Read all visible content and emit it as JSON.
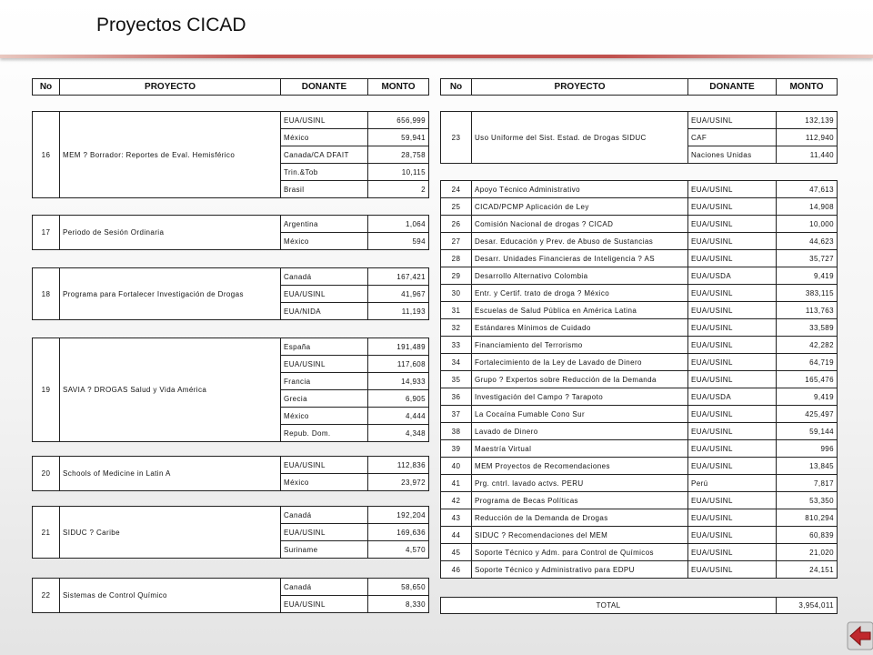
{
  "title": "Proyectos CICAD",
  "header": [
    "No",
    "PROYECTO",
    "DONANTE",
    "MONTO"
  ],
  "left": [
    {
      "no": "16",
      "project": "MEM ? Borrador: Reportes de Eval. Hemisférico",
      "donors": [
        {
          "name": "EUA/USINL",
          "amount": "656,999"
        },
        {
          "name": "México",
          "amount": "59,941"
        },
        {
          "name": "Canada/CA DFAIT",
          "amount": "28,758"
        },
        {
          "name": "Trin.&Tob",
          "amount": "10,115"
        },
        {
          "name": "Brasil",
          "amount": "2"
        }
      ]
    },
    {
      "no": "17",
      "project": "Periodo de Sesión Ordinaria",
      "donors": [
        {
          "name": "Argentina",
          "amount": "1,064"
        },
        {
          "name": "México",
          "amount": "594"
        }
      ]
    },
    {
      "no": "18",
      "project": "Programa para Fortalecer Investigación de Drogas",
      "donors": [
        {
          "name": "Canadá",
          "amount": "167,421"
        },
        {
          "name": "EUA/USINL",
          "amount": "41,967"
        },
        {
          "name": "EUA/NIDA",
          "amount": "11,193"
        }
      ]
    },
    {
      "no": "19",
      "project": "SAVIA ? DROGAS Salud y Vida América",
      "donors": [
        {
          "name": "España",
          "amount": "191,489"
        },
        {
          "name": "EUA/USINL",
          "amount": "117,608"
        },
        {
          "name": "Francia",
          "amount": "14,933"
        },
        {
          "name": "Grecia",
          "amount": "6,905"
        },
        {
          "name": "México",
          "amount": "4,444"
        },
        {
          "name": "Repub. Dom.",
          "amount": "4,348"
        }
      ]
    },
    {
      "no": "20",
      "project": "Schools of Medicine in Latin A",
      "donors": [
        {
          "name": "EUA/USINL",
          "amount": "112,836"
        },
        {
          "name": "México",
          "amount": "23,972"
        }
      ]
    },
    {
      "no": "21",
      "project": "SIDUC ? Caribe",
      "donors": [
        {
          "name": "Canadá",
          "amount": "192,204"
        },
        {
          "name": "EUA/USINL",
          "amount": "169,636"
        },
        {
          "name": "Suriname",
          "amount": "4,570"
        }
      ]
    },
    {
      "no": "22",
      "project": "Sistemas de Control Químico",
      "donors": [
        {
          "name": "Canadá",
          "amount": "58,650"
        },
        {
          "name": "EUA/USINL",
          "amount": "8,330"
        }
      ]
    }
  ],
  "right": [
    {
      "no": "23",
      "project": "Uso Uniforme del Sist. Estad. de Drogas SIDUC",
      "donors": [
        {
          "name": "EUA/USINL",
          "amount": "132,139"
        },
        {
          "name": "CAF",
          "amount": "112,940"
        },
        {
          "name": "Naciones Unidas",
          "amount": "11,440"
        }
      ]
    },
    {
      "no": "24",
      "project": "Apoyo Técnico Administrativo",
      "donors": [
        {
          "name": "EUA/USINL",
          "amount": "47,613"
        }
      ]
    },
    {
      "no": "25",
      "project": "CICAD/PCMP Aplicación de Ley",
      "donors": [
        {
          "name": "EUA/USINL",
          "amount": "14,908"
        }
      ]
    },
    {
      "no": "26",
      "project": "Comisión Nacional de drogas ? CICAD",
      "donors": [
        {
          "name": "EUA/USINL",
          "amount": "10,000"
        }
      ]
    },
    {
      "no": "27",
      "project": "Desar. Educación y Prev. de Abuso de Sustancias",
      "donors": [
        {
          "name": "EUA/USINL",
          "amount": "44,623"
        }
      ]
    },
    {
      "no": "28",
      "project": "Desarr. Unidades Financieras de Inteligencia ? AS",
      "donors": [
        {
          "name": "EUA/USINL",
          "amount": "35,727"
        }
      ]
    },
    {
      "no": "29",
      "project": "Desarrollo Alternativo Colombia",
      "donors": [
        {
          "name": "EUA/USDA",
          "amount": "9,419"
        }
      ]
    },
    {
      "no": "30",
      "project": "Entr. y Certif. trato de droga ? México",
      "donors": [
        {
          "name": "EUA/USINL",
          "amount": "383,115"
        }
      ]
    },
    {
      "no": "31",
      "project": "Escuelas de Salud Pública en América Latina",
      "donors": [
        {
          "name": "EUA/USINL",
          "amount": "113,763"
        }
      ]
    },
    {
      "no": "32",
      "project": "Estándares Mínimos de Cuidado",
      "donors": [
        {
          "name": "EUA/USINL",
          "amount": "33,589"
        }
      ]
    },
    {
      "no": "33",
      "project": "Financiamiento del Terrorismo",
      "donors": [
        {
          "name": "EUA/USINL",
          "amount": "42,282"
        }
      ]
    },
    {
      "no": "34",
      "project": "Fortalecimiento de la Ley de Lavado de Dinero",
      "donors": [
        {
          "name": "EUA/USINL",
          "amount": "64,719"
        }
      ]
    },
    {
      "no": "35",
      "project": "Grupo ? Expertos sobre Reducción de la Demanda",
      "donors": [
        {
          "name": "EUA/USINL",
          "amount": "165,476"
        }
      ]
    },
    {
      "no": "36",
      "project": "Investigación del Campo ? Tarapoto",
      "donors": [
        {
          "name": "EUA/USDA",
          "amount": "9,419"
        }
      ]
    },
    {
      "no": "37",
      "project": "La Cocaína Fumable Cono Sur",
      "donors": [
        {
          "name": "EUA/USINL",
          "amount": "425,497"
        }
      ]
    },
    {
      "no": "38",
      "project": "Lavado de Dinero",
      "donors": [
        {
          "name": "EUA/USINL",
          "amount": "59,144"
        }
      ]
    },
    {
      "no": "39",
      "project": "Maestría Virtual",
      "donors": [
        {
          "name": "EUA/USINL",
          "amount": "996"
        }
      ]
    },
    {
      "no": "40",
      "project": "MEM Proyectos de Recomendaciones",
      "donors": [
        {
          "name": "EUA/USINL",
          "amount": "13,845"
        }
      ]
    },
    {
      "no": "41",
      "project": "Prg. cntrl. lavado actvs. PERU",
      "donors": [
        {
          "name": "Perú",
          "amount": "7,817"
        }
      ]
    },
    {
      "no": "42",
      "project": "Programa de Becas Políticas",
      "donors": [
        {
          "name": "EUA/USINL",
          "amount": "53,350"
        }
      ]
    },
    {
      "no": "43",
      "project": "Reducción de la Demanda de Drogas",
      "donors": [
        {
          "name": "EUA/USINL",
          "amount": "810,294"
        }
      ]
    },
    {
      "no": "44",
      "project": "SIDUC ? Recomendaciones del MEM",
      "donors": [
        {
          "name": "EUA/USINL",
          "amount": "60,839"
        }
      ]
    },
    {
      "no": "45",
      "project": "Soporte Técnico y Adm. para Control de Químicos",
      "donors": [
        {
          "name": "EUA/USINL",
          "amount": "21,020"
        }
      ]
    },
    {
      "no": "46",
      "project": "Soporte Técnico y Administrativo para EDPU",
      "donors": [
        {
          "name": "EUA/USINL",
          "amount": "24,151"
        }
      ]
    }
  ],
  "total": {
    "label": "TOTAL",
    "amount": "3,954,011"
  }
}
